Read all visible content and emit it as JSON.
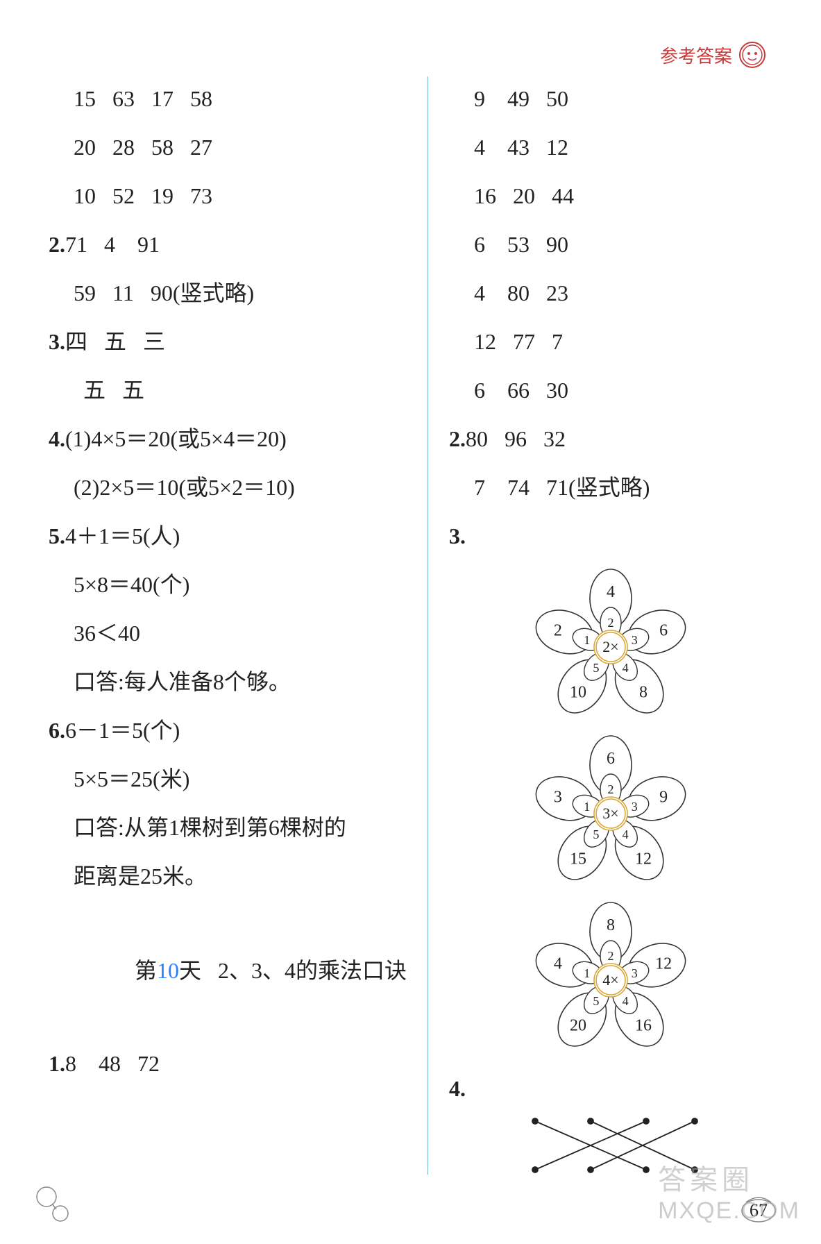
{
  "header": {
    "title": "参考答案"
  },
  "left": {
    "rows1": [
      "15   63   17   58",
      "20   28   58   27",
      "10   52   19   73"
    ],
    "q2_a": "71   4    91",
    "q2_b": "59   11   90(竖式略)",
    "q3_a": "四   五   三",
    "q3_b": "五   五",
    "q4_1": "(1)4×5＝20(或5×4＝20)",
    "q4_2": "(2)2×5＝10(或5×2＝10)",
    "q5_a": "4＋1＝5(人)",
    "q5_b": "5×8＝40(个)",
    "q5_c": "36＜40",
    "q5_d": "口答:每人准备8个够。",
    "q6_a": "6－1＝5(个)",
    "q6_b": "5×5＝25(米)",
    "q6_c": "口答:从第1棵树到第6棵树的",
    "q6_d": "距离是25米。",
    "title_prefix": "第",
    "title_num": "10",
    "title_suffix": "天   2、3、4的乘法口诀",
    "q1_new": "8    48   72",
    "labels": {
      "n2": "2.",
      "n3": "3.",
      "n4": "4.",
      "n5": "5.",
      "n6": "6.",
      "n1": "1."
    }
  },
  "right": {
    "rows1": [
      "9    49   50",
      "4    43   12",
      "16   20   44",
      "6    53   90",
      "4    80   23",
      "12   77   7",
      "6    66   30"
    ],
    "q2_a": "80   96   32",
    "q2_b": "7    74   71(竖式略)",
    "labels": {
      "n2": "2.",
      "n3": "3.",
      "n4": "4."
    },
    "flowers": [
      {
        "center": "2×",
        "outer": [
          "4",
          "6",
          "8",
          "10",
          "2"
        ],
        "inner": [
          "2",
          "3",
          "4",
          "5",
          "1"
        ]
      },
      {
        "center": "3×",
        "outer": [
          "6",
          "9",
          "12",
          "15",
          "3"
        ],
        "inner": [
          "2",
          "3",
          "4",
          "5",
          "1"
        ]
      },
      {
        "center": "4×",
        "outer": [
          "8",
          "12",
          "16",
          "20",
          "4"
        ],
        "inner": [
          "2",
          "3",
          "4",
          "5",
          "1"
        ]
      }
    ]
  },
  "footer": {
    "page_num": "67",
    "wm_cn": "答案圈",
    "wm_en": "MXQE.COM"
  },
  "style": {
    "text_color": "#222222",
    "accent_color": "#2a7fff",
    "header_color": "#c93a3a",
    "divider_color": "#6fb3c9",
    "font_size_body": 32,
    "font_size_header": 26,
    "flower_stroke": "#333333",
    "flower_center_stroke": "#d9a83a"
  }
}
